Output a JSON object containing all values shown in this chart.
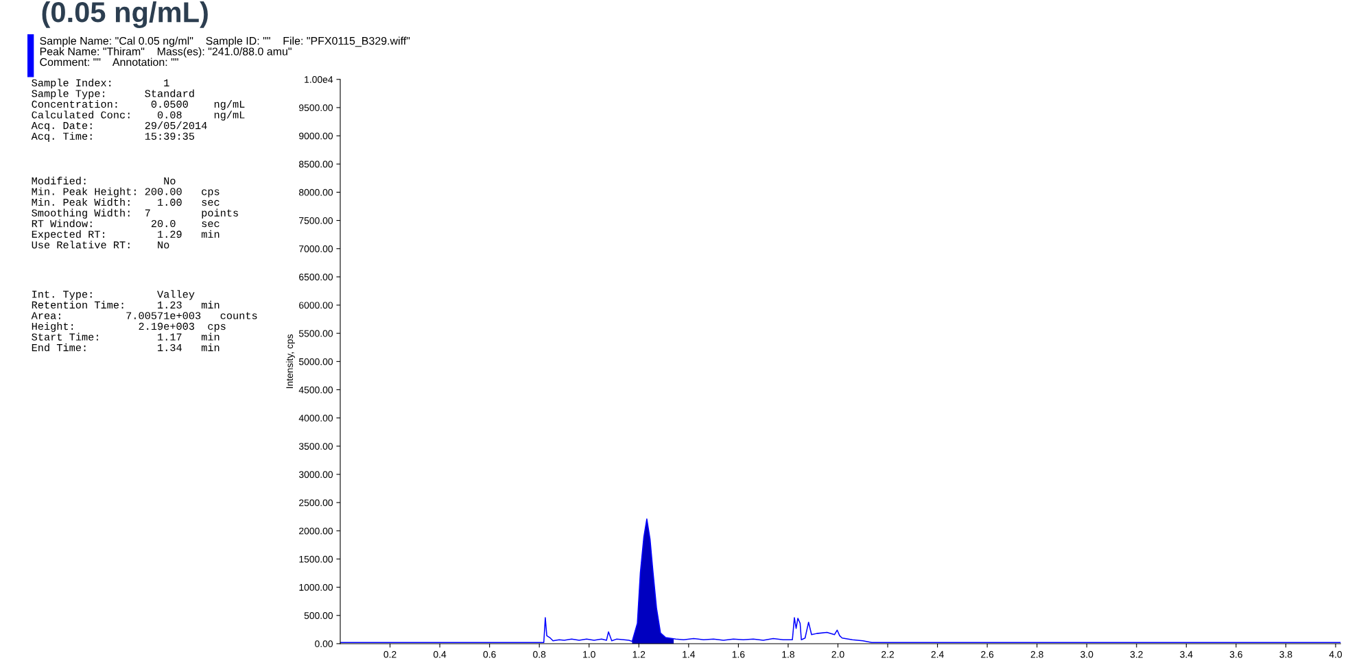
{
  "chart_data": {
    "type": "line",
    "title": "(0.05 ng/mL)",
    "subtitle": "Sample Name: \"Cal 0.05 ng/ml\"    Sample ID: \"\"    File: \"PFX0115_B329.wiff\"\nPeak Name: \"Thiram\"    Mass(es): \"241.0/88.0 amu\"\nComment: \"\"    Annotation: \"\"",
    "annotations": [
      "Sample Index:        1\nSample Type:      Standard\nConcentration:     0.0500    ng/mL\nCalculated Conc:    0.08     ng/mL\nAcq. Date:        29/05/2014\nAcq. Time:        15:39:35",
      "Modified:            No\nMin. Peak Height: 200.00   cps\nMin. Peak Width:    1.00   sec\nSmoothing Width:  7        points\nRT Window:         20.0    sec\nExpected RT:        1.29   min\nUse Relative RT:    No",
      "Int. Type:          Valley\nRetention Time:     1.23   min\nArea:          7.00571e+003   counts\nHeight:          2.19e+003  cps\nStart Time:         1.17   min\nEnd Time:           1.34   min"
    ],
    "ylabel": "Intensity, cps",
    "series": [
      {
        "color": "#0000ff",
        "x": [
          0.0,
          0.816,
          0.818,
          0.824,
          0.83,
          0.844,
          0.855,
          0.88,
          0.9,
          0.93,
          0.96,
          0.99,
          1.02,
          1.05,
          1.07,
          1.078,
          1.091,
          1.11,
          1.14,
          1.16,
          1.173,
          1.194,
          1.206,
          1.22,
          1.232,
          1.245,
          1.256,
          1.271,
          1.287,
          1.307,
          1.348,
          1.38,
          1.42,
          1.46,
          1.5,
          1.54,
          1.58,
          1.62,
          1.66,
          1.7,
          1.74,
          1.78,
          1.817,
          1.825,
          1.832,
          1.839,
          1.848,
          1.853,
          1.868,
          1.882,
          1.894,
          1.915,
          1.956,
          1.986,
          1.997,
          2.007,
          2.017,
          2.058,
          2.1,
          2.136,
          2.14,
          4.02
        ],
        "values": [
          20,
          20,
          20,
          460,
          140,
          100,
          50,
          70,
          60,
          80,
          60,
          80,
          60,
          80,
          60,
          210,
          50,
          80,
          70,
          60,
          40,
          360,
          1260,
          1890,
          2210,
          1850,
          1310,
          630,
          190,
          110,
          80,
          70,
          90,
          70,
          80,
          60,
          80,
          70,
          80,
          60,
          90,
          70,
          70,
          460,
          270,
          450,
          360,
          70,
          100,
          380,
          160,
          180,
          200,
          160,
          240,
          140,
          100,
          70,
          50,
          20,
          20,
          20
        ]
      },
      {
        "type": "area",
        "color": "#0000c0",
        "x": [
          1.173,
          1.194,
          1.206,
          1.22,
          1.232,
          1.245,
          1.256,
          1.271,
          1.287,
          1.307,
          1.34
        ],
        "values": [
          40,
          360,
          1260,
          1890,
          2210,
          1850,
          1310,
          630,
          190,
          110,
          80
        ]
      }
    ],
    "xlim": [
      0,
      4.02
    ],
    "xticks": [
      0.2,
      0.4,
      0.6,
      0.8,
      {
        "value": 1,
        "label": "1.0"
      },
      1.2,
      1.4,
      1.6,
      1.8,
      {
        "value": 2,
        "label": "2.0"
      },
      2.2,
      2.4,
      2.6,
      2.8,
      {
        "value": 3,
        "label": "3.0"
      },
      3.2,
      3.4,
      3.6,
      3.8,
      {
        "value": 4,
        "label": "4.0"
      }
    ],
    "ylim": [
      0,
      10000
    ],
    "yticks": [
      {
        "value": 0,
        "label": "0.00"
      },
      {
        "value": 500,
        "label": "500.00"
      },
      {
        "value": 1000,
        "label": "1000.00"
      },
      {
        "value": 1500,
        "label": "1500.00"
      },
      {
        "value": 2000,
        "label": "2000.00"
      },
      {
        "value": 2500,
        "label": "2500.00"
      },
      {
        "value": 3000,
        "label": "3000.00"
      },
      {
        "value": 3500,
        "label": "3500.00"
      },
      {
        "value": 4000,
        "label": "4000.00"
      },
      {
        "value": 4500,
        "label": "4500.00"
      },
      {
        "value": 5000,
        "label": "5000.00"
      },
      {
        "value": 5500,
        "label": "5500.00"
      },
      {
        "value": 6000,
        "label": "6000.00"
      },
      {
        "value": 6500,
        "label": "6500.00"
      },
      {
        "value": 7000,
        "label": "7000.00"
      },
      {
        "value": 7500,
        "label": "7500.00"
      },
      {
        "value": 8000,
        "label": "8000.00"
      },
      {
        "value": 8500,
        "label": "8500.00"
      },
      {
        "value": 9000,
        "label": "9000.00"
      },
      {
        "value": 9500,
        "label": "9500.00"
      },
      {
        "value": 10000,
        "label": "1.00e4"
      }
    ],
    "grid": false,
    "legend": false
  }
}
